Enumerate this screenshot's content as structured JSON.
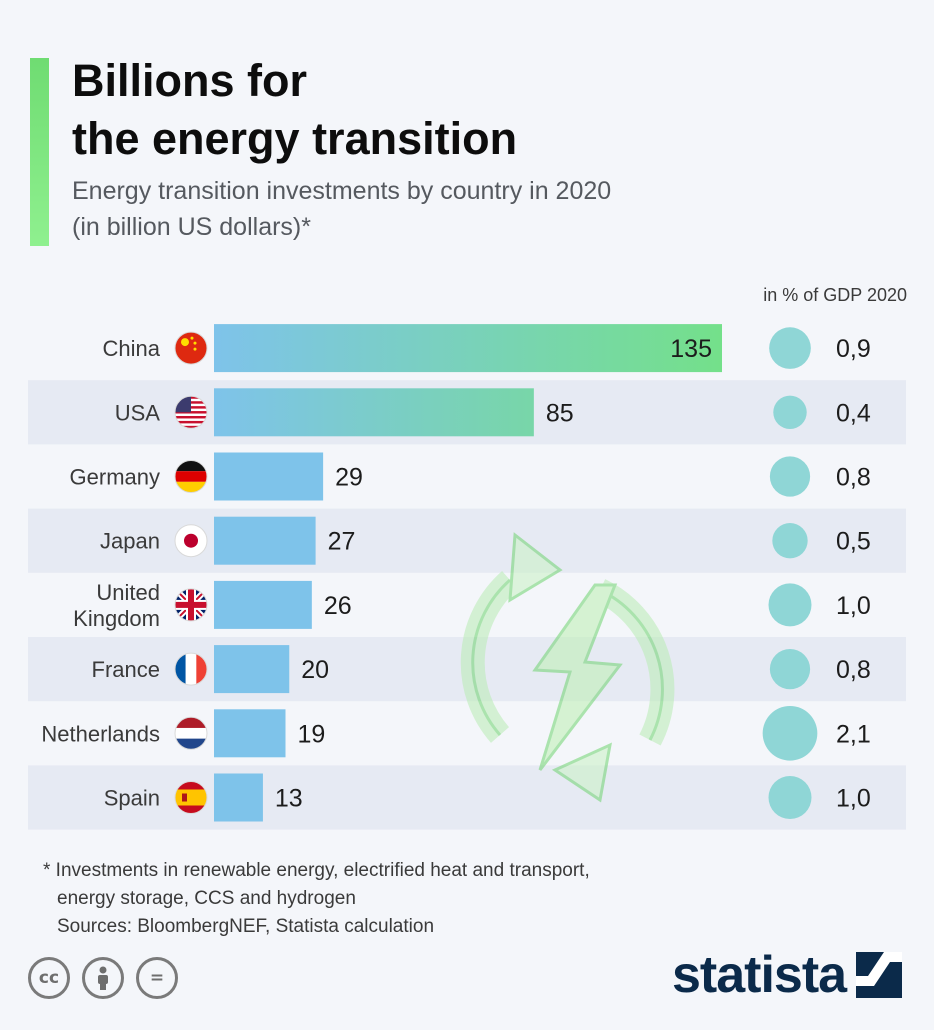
{
  "title_line1": "Billions for",
  "title_line2": "the energy transition",
  "subtitle_line1": "Energy transition investments by country in 2020",
  "subtitle_line2": "(in billion US dollars)*",
  "gdp_header": "in % of GDP 2020",
  "footnote_line1": "* Investments in renewable energy, electrified heat and transport,",
  "footnote_line2": "energy storage, CCS and hydrogen",
  "footnote_line3": "Sources: BloombergNEF, Statista calculation",
  "brand": "statista",
  "license_icons": [
    {
      "name": "cc-icon",
      "glyph": "cc"
    },
    {
      "name": "attribution-icon",
      "glyph": "i"
    },
    {
      "name": "no-derivatives-icon",
      "glyph": "="
    }
  ],
  "colors": {
    "accent": "#6fdc72",
    "bar": "#7ec3ea",
    "bar_gradient_end": "#74e08a",
    "gdp_bubble": "#8fd6d6",
    "row_shade": "#e6eaf3",
    "brand": "#0b2a4a"
  },
  "chart_data": {
    "type": "bar",
    "orientation": "horizontal",
    "categories": [
      "China",
      "USA",
      "Germany",
      "Japan",
      "United Kingdom",
      "France",
      "Netherlands",
      "Spain"
    ],
    "category_labels": [
      [
        "China"
      ],
      [
        "USA"
      ],
      [
        "Germany"
      ],
      [
        "Japan"
      ],
      [
        "United",
        "Kingdom"
      ],
      [
        "France"
      ],
      [
        "Netherlands"
      ],
      [
        "Spain"
      ]
    ],
    "flags": [
      "flag-china-icon",
      "flag-usa-icon",
      "flag-germany-icon",
      "flag-japan-icon",
      "flag-uk-icon",
      "flag-france-icon",
      "flag-netherlands-icon",
      "flag-spain-icon"
    ],
    "values": [
      135,
      85,
      29,
      27,
      26,
      20,
      19,
      13
    ],
    "value_labels": [
      "135",
      "85",
      "29",
      "27",
      "26",
      "20",
      "19",
      "13"
    ],
    "gdp_share_values": [
      0.9,
      0.4,
      0.8,
      0.5,
      1.0,
      0.8,
      2.1,
      1.0
    ],
    "gdp_share_labels": [
      "0,9",
      "0,4",
      "0,8",
      "0,5",
      "1,0",
      "0,8",
      "2,1",
      "1,0"
    ],
    "xlim": [
      0,
      135
    ]
  }
}
